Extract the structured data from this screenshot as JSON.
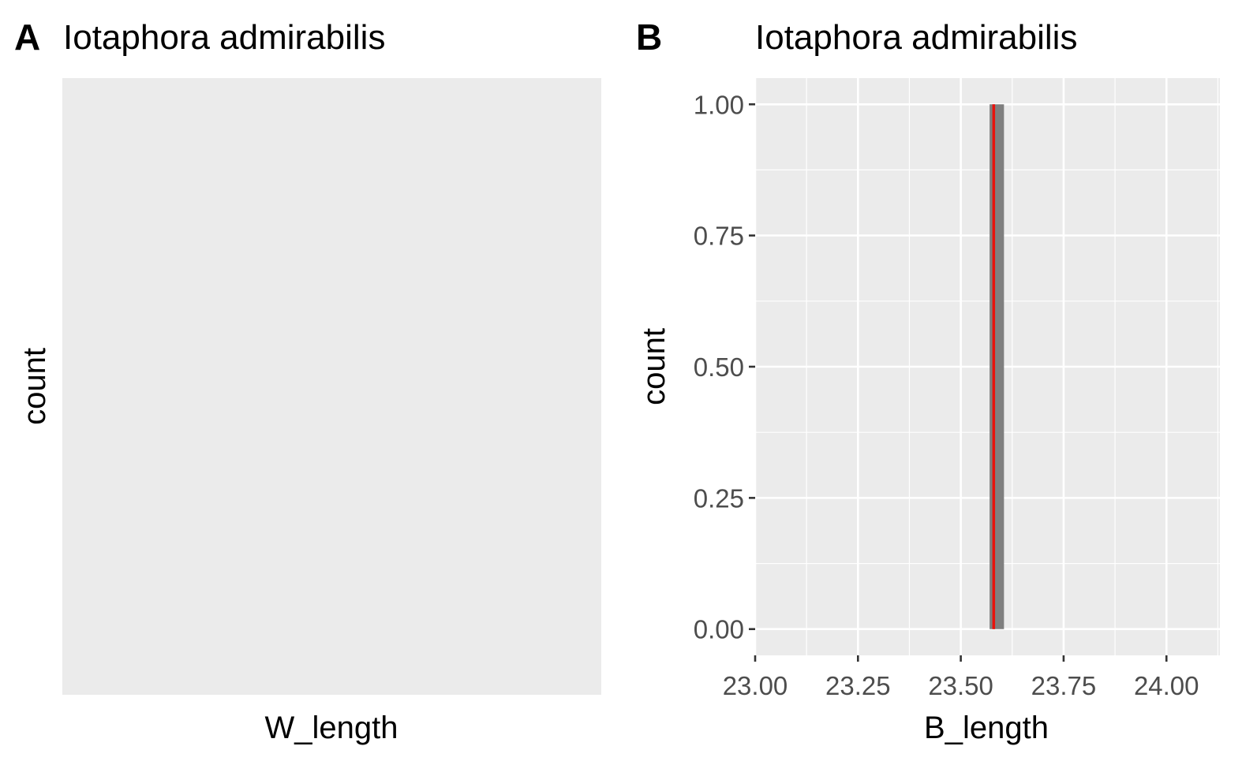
{
  "panels": {
    "a": {
      "tag": "A",
      "title": "Iotaphora admirabilis",
      "xlabel": "W_length",
      "ylabel": "count"
    },
    "b": {
      "tag": "B",
      "title": "Iotaphora admirabilis",
      "xlabel": "B_length",
      "ylabel": "count"
    }
  },
  "colors": {
    "panel_bg": "#EBEBEB",
    "grid": "#FFFFFF",
    "bar_fill": "#7F7F7F",
    "vline": "#E8120C",
    "axis_text": "#4D4D4D",
    "text": "#000000"
  },
  "chart_data": [
    {
      "panel": "A",
      "type": "bar",
      "title": "Iotaphora admirabilis",
      "xlabel": "W_length",
      "ylabel": "count",
      "series": [],
      "grid": false
    },
    {
      "panel": "B",
      "type": "bar",
      "title": "Iotaphora admirabilis",
      "xlabel": "B_length",
      "ylabel": "count",
      "xlim": [
        23.0,
        24.13
      ],
      "ylim": [
        -0.05,
        1.05
      ],
      "xticks": [
        23.0,
        23.25,
        23.5,
        23.75,
        24.0
      ],
      "xtick_labels": [
        "23.00",
        "23.25",
        "23.50",
        "23.75",
        "24.00"
      ],
      "yticks": [
        0.0,
        0.25,
        0.5,
        0.75,
        1.0
      ],
      "ytick_labels": [
        "0.00",
        "0.25",
        "0.50",
        "0.75",
        "1.00"
      ],
      "bars": [
        {
          "xmin": 23.57,
          "xmax": 23.605,
          "count": 1
        }
      ],
      "vline": {
        "x": 23.58
      },
      "grid": true
    }
  ]
}
